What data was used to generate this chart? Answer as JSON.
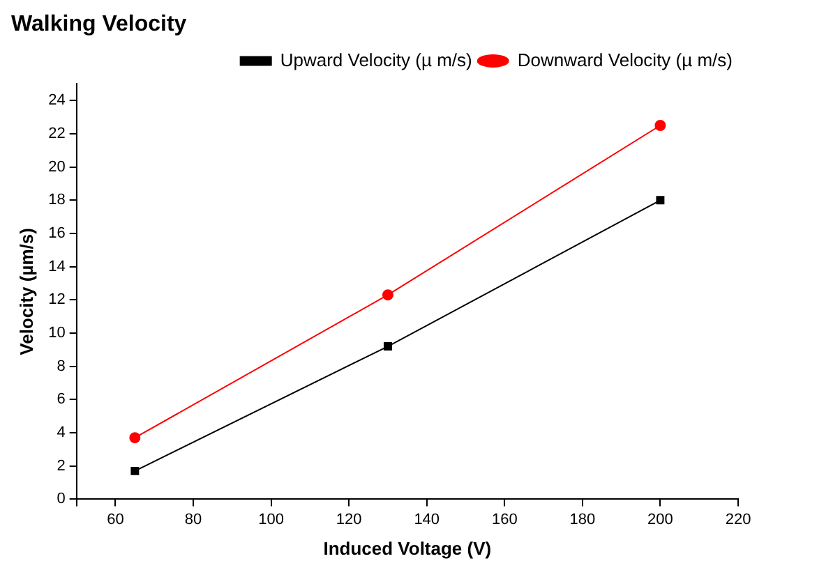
{
  "chart_data": {
    "type": "line",
    "title": "Walking Velocity",
    "xlabel": "Induced Voltage (V)",
    "ylabel": "Velocity (µm/s)",
    "x": [
      65,
      130,
      200
    ],
    "series": [
      {
        "name": "Upward Velocity (µ m/s)",
        "color": "#000000",
        "marker": "square",
        "values": [
          1.7,
          9.2,
          18.0
        ]
      },
      {
        "name": "Downward Velocity (µ m/s)",
        "color": "#ff0000",
        "marker": "circle",
        "values": [
          3.7,
          12.3,
          22.5
        ]
      }
    ],
    "xlim": [
      50,
      220
    ],
    "xticks": [
      {
        "value": 50,
        "label": null
      },
      60,
      80,
      100,
      120,
      140,
      160,
      180,
      200,
      220
    ],
    "ylim": [
      0,
      25
    ],
    "yticks": [
      0,
      2,
      4,
      6,
      8,
      10,
      12,
      14,
      16,
      18,
      20,
      22,
      24
    ],
    "grid": false,
    "legend": "top right",
    "line_style": "solid"
  }
}
